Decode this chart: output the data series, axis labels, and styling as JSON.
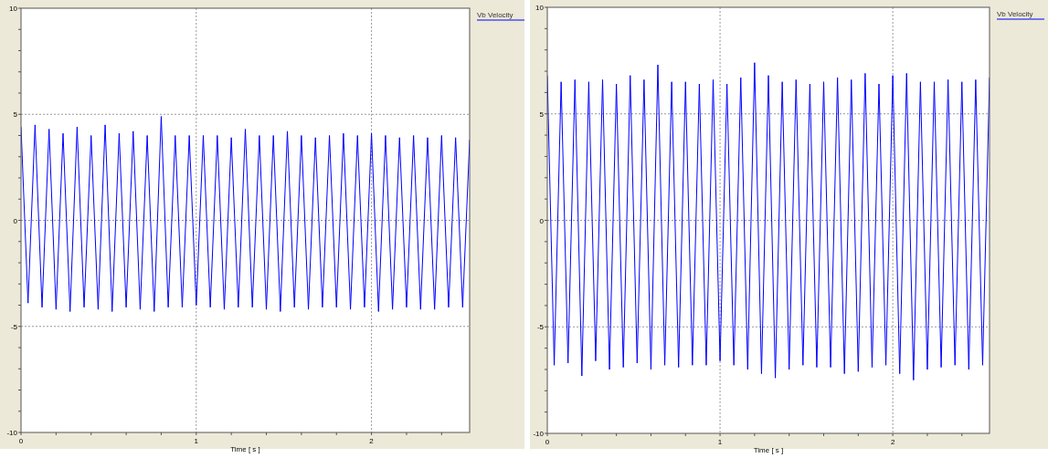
{
  "chart_data": [
    {
      "type": "line",
      "xlabel": "Time [ s ]",
      "xlim": [
        0,
        2.56
      ],
      "ylim": [
        -10,
        10
      ],
      "grid": true,
      "legend": "right",
      "line_style": "solid",
      "xticks": [
        0,
        {
          "value": 0.2,
          "label": null
        },
        {
          "value": 0.4,
          "label": null
        },
        {
          "value": 0.6,
          "label": null
        },
        {
          "value": 0.8,
          "label": null
        },
        1,
        {
          "value": 1.2,
          "label": null
        },
        {
          "value": 1.4,
          "label": null
        },
        {
          "value": 1.6,
          "label": null
        },
        {
          "value": 1.8,
          "label": null
        },
        2,
        {
          "value": 2.2,
          "label": null
        },
        {
          "value": 2.4,
          "label": null
        }
      ],
      "yticks": [
        -10,
        {
          "value": -9,
          "label": null
        },
        {
          "value": -8,
          "label": null
        },
        {
          "value": -7,
          "label": null
        },
        {
          "value": -6,
          "label": null
        },
        -5,
        {
          "value": -4,
          "label": null
        },
        {
          "value": -3,
          "label": null
        },
        {
          "value": -2,
          "label": null
        },
        {
          "value": -1,
          "label": null
        },
        0,
        {
          "value": 1,
          "label": null
        },
        {
          "value": 2,
          "label": null
        },
        {
          "value": 3,
          "label": null
        },
        {
          "value": 4,
          "label": null
        },
        5,
        {
          "value": 6,
          "label": null
        },
        {
          "value": 7,
          "label": null
        },
        {
          "value": 8,
          "label": null
        },
        {
          "value": 9,
          "label": null
        },
        10
      ],
      "series": [
        {
          "name": "Vb Velocity",
          "color": "#0000ff",
          "x": [
            0,
            0.04,
            0.08,
            0.12,
            0.16,
            0.2,
            0.24,
            0.28,
            0.32,
            0.36,
            0.4,
            0.44,
            0.48,
            0.52,
            0.56,
            0.6,
            0.64,
            0.68,
            0.72,
            0.76,
            0.8,
            0.84,
            0.88,
            0.92,
            0.96,
            1,
            1.04,
            1.08,
            1.12,
            1.16,
            1.2,
            1.24,
            1.28,
            1.32,
            1.36,
            1.4,
            1.44,
            1.48,
            1.52,
            1.56,
            1.6,
            1.64,
            1.68,
            1.72,
            1.76,
            1.8,
            1.84,
            1.88,
            1.92,
            1.96,
            2,
            2.04,
            2.08,
            2.12,
            2.16,
            2.2,
            2.24,
            2.28,
            2.32,
            2.36,
            2.4,
            2.44,
            2.48,
            2.52,
            2.56
          ],
          "values": [
            4.4,
            -3.9,
            4.5,
            -4.1,
            4.3,
            -4.2,
            4.1,
            -4.3,
            4.4,
            -4.1,
            4.0,
            -4.2,
            4.5,
            -4.3,
            4.1,
            -4.1,
            4.2,
            -4.2,
            4.0,
            -4.3,
            4.9,
            -4.1,
            4.0,
            -4.1,
            4.0,
            -4.0,
            4.0,
            -4.1,
            4.0,
            -4.2,
            3.9,
            -4.1,
            4.3,
            -4.1,
            4.0,
            -4.2,
            4.0,
            -4.3,
            4.2,
            -4.1,
            4.0,
            -4.2,
            3.9,
            -4.1,
            4.0,
            -4.1,
            4.1,
            -4.2,
            4.0,
            -4.1,
            4.1,
            -4.3,
            4.0,
            -4.2,
            3.9,
            -4.1,
            4.0,
            -4.2,
            3.9,
            -4.2,
            4.0,
            -4.1,
            3.9,
            -4.1,
            3.8
          ]
        }
      ]
    },
    {
      "type": "line",
      "xlabel": "Time [ s ]",
      "xlim": [
        0,
        2.56
      ],
      "ylim": [
        -10,
        10
      ],
      "grid": true,
      "legend": "right",
      "line_style": "solid",
      "xticks": [
        0,
        {
          "value": 0.2,
          "label": null
        },
        {
          "value": 0.4,
          "label": null
        },
        {
          "value": 0.6,
          "label": null
        },
        {
          "value": 0.8,
          "label": null
        },
        1,
        {
          "value": 1.2,
          "label": null
        },
        {
          "value": 1.4,
          "label": null
        },
        {
          "value": 1.6,
          "label": null
        },
        {
          "value": 1.8,
          "label": null
        },
        2,
        {
          "value": 2.2,
          "label": null
        },
        {
          "value": 2.4,
          "label": null
        }
      ],
      "yticks": [
        -10,
        {
          "value": -9,
          "label": null
        },
        {
          "value": -8,
          "label": null
        },
        {
          "value": -7,
          "label": null
        },
        {
          "value": -6,
          "label": null
        },
        -5,
        {
          "value": -4,
          "label": null
        },
        {
          "value": -3,
          "label": null
        },
        {
          "value": -2,
          "label": null
        },
        {
          "value": -1,
          "label": null
        },
        0,
        {
          "value": 1,
          "label": null
        },
        {
          "value": 2,
          "label": null
        },
        {
          "value": 3,
          "label": null
        },
        {
          "value": 4,
          "label": null
        },
        5,
        {
          "value": 6,
          "label": null
        },
        {
          "value": 7,
          "label": null
        },
        {
          "value": 8,
          "label": null
        },
        {
          "value": 9,
          "label": null
        },
        10
      ],
      "series": [
        {
          "name": "Vb Velocity",
          "color": "#0000ff",
          "x": [
            0,
            0.04,
            0.08,
            0.12,
            0.16,
            0.2,
            0.24,
            0.28,
            0.32,
            0.36,
            0.4,
            0.44,
            0.48,
            0.52,
            0.56,
            0.6,
            0.64,
            0.68,
            0.72,
            0.76,
            0.8,
            0.84,
            0.88,
            0.92,
            0.96,
            1,
            1.04,
            1.08,
            1.12,
            1.16,
            1.2,
            1.24,
            1.28,
            1.32,
            1.36,
            1.4,
            1.44,
            1.48,
            1.52,
            1.56,
            1.6,
            1.64,
            1.68,
            1.72,
            1.76,
            1.8,
            1.84,
            1.88,
            1.92,
            1.96,
            2,
            2.04,
            2.08,
            2.12,
            2.16,
            2.2,
            2.24,
            2.28,
            2.32,
            2.36,
            2.4,
            2.44,
            2.48,
            2.52,
            2.56
          ],
          "values": [
            6.8,
            -6.8,
            6.5,
            -6.7,
            6.6,
            -7.3,
            6.5,
            -6.6,
            6.6,
            -7.0,
            6.4,
            -6.9,
            6.8,
            -6.7,
            6.6,
            -7.0,
            7.3,
            -6.8,
            6.5,
            -6.9,
            6.5,
            -6.8,
            6.4,
            -6.8,
            6.6,
            -6.6,
            6.4,
            -6.8,
            6.7,
            -7.0,
            7.4,
            -7.2,
            6.8,
            -7.4,
            6.5,
            -7.0,
            6.6,
            -6.8,
            6.4,
            -6.9,
            6.5,
            -6.9,
            6.7,
            -7.2,
            6.6,
            -7.1,
            6.9,
            -6.9,
            6.4,
            -6.8,
            6.8,
            -7.2,
            6.9,
            -7.5,
            6.5,
            -7.0,
            6.5,
            -6.9,
            6.6,
            -6.8,
            6.5,
            -7.0,
            6.6,
            -6.8,
            6.7
          ]
        }
      ]
    }
  ]
}
